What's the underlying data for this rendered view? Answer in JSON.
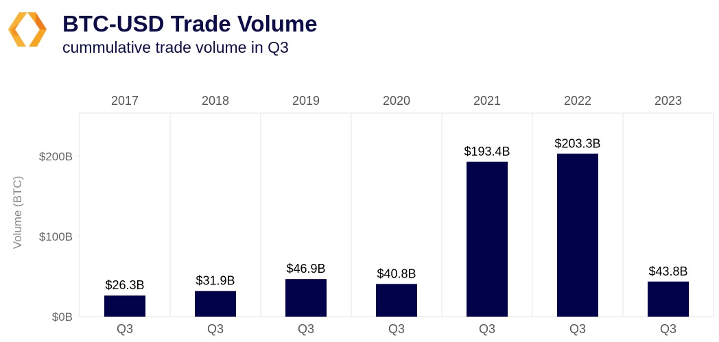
{
  "header": {
    "title": "BTC-USD Trade Volume",
    "subtitle": "cummulative trade volume in Q3"
  },
  "colors": {
    "bar": "#02024a",
    "title": "#0c0c4a",
    "logo_light": "#f9b233",
    "logo_dark": "#f07c1a"
  },
  "logo_icon": "orange-hexagon-brackets-logo",
  "chart_data": {
    "type": "bar",
    "title": "BTC-USD Trade Volume",
    "subtitle": "cummulative trade volume in Q3",
    "ylabel": "Volume (BTC)",
    "xlabel": "",
    "panels": [
      "2017",
      "2018",
      "2019",
      "2020",
      "2021",
      "2022",
      "2023"
    ],
    "categories": [
      "Q3",
      "Q3",
      "Q3",
      "Q3",
      "Q3",
      "Q3",
      "Q3"
    ],
    "values": [
      26.3,
      31.9,
      46.9,
      40.8,
      193.4,
      203.3,
      43.8
    ],
    "data_labels": [
      "$26.3B",
      "$31.9B",
      "$46.9B",
      "$40.8B",
      "$193.4B",
      "$203.3B",
      "$43.8B"
    ],
    "yticks": [
      0,
      100,
      200
    ],
    "ytick_labels": [
      "$0B",
      "$100B",
      "$200B"
    ],
    "ylim": [
      0,
      254
    ],
    "grid": false,
    "legend": "none"
  }
}
